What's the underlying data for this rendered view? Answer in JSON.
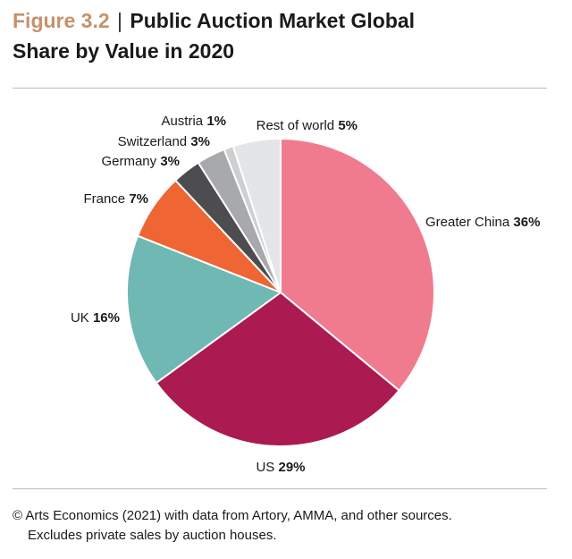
{
  "header": {
    "figure_label": "Figure 3.2",
    "separator": "|",
    "title_line1": "Public Auction Market Global",
    "title_line2": "Share by Value in 2020"
  },
  "chart_data": {
    "type": "pie",
    "title": "Public Auction Market Global Share by Value in 2020",
    "slices": [
      {
        "name": "Greater China",
        "value": 36,
        "label": "36%",
        "color": "#f07b8f"
      },
      {
        "name": "US",
        "value": 29,
        "label": "29%",
        "color": "#ab1a51"
      },
      {
        "name": "UK",
        "value": 16,
        "label": "16%",
        "color": "#6fb8b4"
      },
      {
        "name": "France",
        "value": 7,
        "label": "7%",
        "color": "#ef6533"
      },
      {
        "name": "Germany",
        "value": 3,
        "label": "3%",
        "color": "#4d4d4f"
      },
      {
        "name": "Switzerland",
        "value": 3,
        "label": "3%",
        "color": "#a8a9ad"
      },
      {
        "name": "Austria",
        "value": 1,
        "label": "1%",
        "color": "#cdcfd1"
      },
      {
        "name": "Rest of world",
        "value": 5,
        "label": "5%",
        "color": "#e4e5e7"
      }
    ]
  },
  "footer": {
    "source_line1": "© Arts Economics (2021) with data from Artory, AMMA, and other sources.",
    "source_line2": "Excludes private sales by auction houses."
  }
}
